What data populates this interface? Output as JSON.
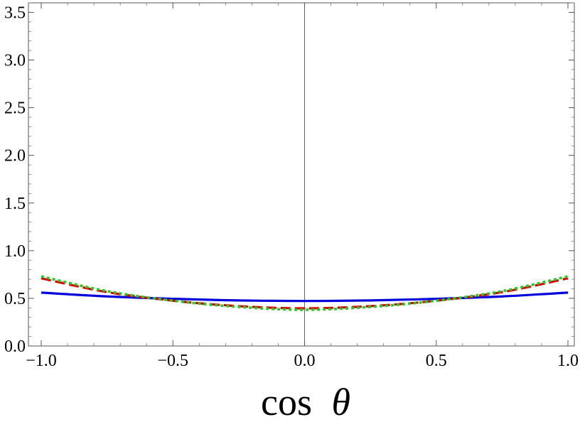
{
  "chart_data": {
    "type": "line",
    "title": "",
    "xlabel": "cos θ",
    "xlabel_parts": {
      "text": "cos",
      "symbol": "θ"
    },
    "ylabel": "",
    "xlim": [
      -1.0,
      1.0
    ],
    "ylim": [
      0.0,
      3.6
    ],
    "x_ticks": [
      "−1.0",
      "−0.5",
      "0.0",
      "0.5",
      "1.0"
    ],
    "x_tick_values": [
      -1.0,
      -0.5,
      0.0,
      0.5,
      1.0
    ],
    "y_ticks": [
      "0.0",
      "0.5",
      "1.0",
      "1.5",
      "2.0",
      "2.5",
      "3.0",
      "3.5"
    ],
    "y_tick_values": [
      0.0,
      0.5,
      1.0,
      1.5,
      2.0,
      2.5,
      3.0,
      3.5
    ],
    "grid": false,
    "legend": "none",
    "zero_line": true,
    "x": [
      -1.0,
      -0.75,
      -0.5,
      -0.25,
      0.0,
      0.25,
      0.5,
      0.75,
      1.0
    ],
    "series": [
      {
        "color": "#0000dd",
        "style": "solid",
        "values": [
          0.56,
          0.52,
          0.495,
          0.478,
          0.472,
          0.478,
          0.495,
          0.52,
          0.56
        ]
      },
      {
        "color": "#dd0000",
        "style": "dashed",
        "values": [
          0.71,
          0.565,
          0.475,
          0.418,
          0.395,
          0.418,
          0.475,
          0.565,
          0.71
        ]
      },
      {
        "color": "#22cc22",
        "style": "dotted",
        "values": [
          0.73,
          0.575,
          0.475,
          0.41,
          0.38,
          0.41,
          0.475,
          0.575,
          0.73
        ]
      }
    ]
  }
}
